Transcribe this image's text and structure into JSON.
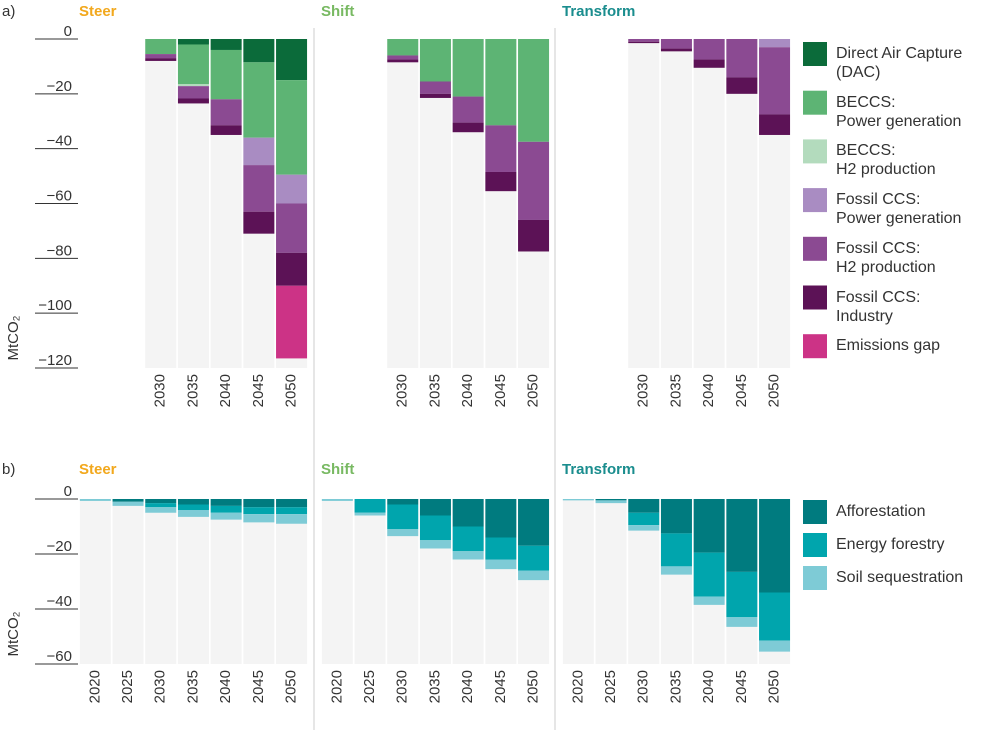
{
  "chart_data": [
    {
      "type": "bar",
      "stacked": true,
      "label": "a)",
      "ylabel": "MtCO₂",
      "groups": [
        "Steer",
        "Shift",
        "Transform"
      ],
      "group_colors": [
        "#f2a81d",
        "#78b962",
        "#1a8d8e"
      ],
      "categories": [
        "2030",
        "2035",
        "2040",
        "2045",
        "2050"
      ],
      "ylim": [
        -120,
        0
      ],
      "yticks": [
        0,
        {
          "value": -20,
          "label": "−20"
        },
        {
          "value": -40,
          "label": "−40"
        },
        {
          "value": -60,
          "label": "−60"
        },
        {
          "value": -80,
          "label": "−80"
        },
        {
          "value": -100,
          "label": "−100"
        },
        {
          "value": -120,
          "label": "−120"
        }
      ],
      "series": [
        {
          "name": "Direct Air Capture\n(DAC)",
          "color": "#0b6b3a",
          "values": [
            [
              0,
              -2,
              -4,
              -8.5,
              -15
            ],
            [
              0,
              0,
              0,
              0,
              0
            ],
            [
              0,
              0,
              0,
              0,
              0
            ]
          ]
        },
        {
          "name": "BECCS:\nPower generation",
          "color": "#5db474",
          "values": [
            [
              -5.5,
              -14.5,
              -18,
              -27.5,
              -34.5
            ],
            [
              -6,
              -15.5,
              -21,
              -31.5,
              -37.5
            ],
            [
              0,
              0,
              0,
              0,
              0
            ]
          ]
        },
        {
          "name": "BECCS:\nH2 production",
          "color": "#b3dbbd",
          "values": [
            [
              0,
              -0.7,
              0,
              0,
              0
            ],
            [
              0,
              0,
              0,
              0,
              0
            ],
            [
              0,
              0,
              0,
              0,
              0
            ]
          ]
        },
        {
          "name": "Fossil CCS:\nPower generation",
          "color": "#a98cc2",
          "values": [
            [
              0,
              0,
              0,
              -10,
              -10.5
            ],
            [
              0,
              0,
              0,
              0,
              0
            ],
            [
              0,
              0,
              0,
              0,
              -3
            ]
          ]
        },
        {
          "name": "Fossil CCS:\nH2 production",
          "color": "#8b4a92",
          "values": [
            [
              -1.5,
              -4.5,
              -9.5,
              -17,
              -18
            ],
            [
              -1.5,
              -4.5,
              -9.5,
              -17,
              -28.5
            ],
            [
              -1,
              -3.5,
              -7.5,
              -14,
              -24.5
            ]
          ]
        },
        {
          "name": "Fossil CCS:\nIndustry",
          "color": "#5c1256",
          "values": [
            [
              -1,
              -1.8,
              -3.5,
              -8,
              -12
            ],
            [
              -1,
              -1.5,
              -3.5,
              -7,
              -11.5
            ],
            [
              -0.5,
              -1,
              -3,
              -6,
              -7.5
            ]
          ]
        },
        {
          "name": "Emissions gap",
          "color": "#cc3386",
          "values": [
            [
              0,
              0,
              0,
              0,
              -26.5
            ],
            [
              0,
              0,
              0,
              0,
              0
            ],
            [
              0,
              0,
              0,
              0,
              0
            ]
          ]
        }
      ]
    },
    {
      "type": "bar",
      "stacked": true,
      "label": "b)",
      "ylabel": "MtCO₂",
      "groups": [
        "Steer",
        "Shift",
        "Transform"
      ],
      "group_colors": [
        "#f2a81d",
        "#78b962",
        "#1a8d8e"
      ],
      "categories": [
        "2020",
        "2025",
        "2030",
        "2035",
        "2040",
        "2045",
        "2050"
      ],
      "ylim": [
        -60,
        0
      ],
      "yticks": [
        0,
        {
          "value": -20,
          "label": "−20"
        },
        {
          "value": -40,
          "label": "−40"
        },
        {
          "value": -60,
          "label": "−60"
        }
      ],
      "series": [
        {
          "name": "Afforestation",
          "color": "#007b7f",
          "values": [
            [
              0,
              -1,
              -1.5,
              -2,
              -2.5,
              -3,
              -3
            ],
            [
              0,
              0,
              -2,
              -6,
              -10,
              -14,
              -17
            ],
            [
              0,
              -0.5,
              -5,
              -12.5,
              -19.5,
              -26.5,
              -34
            ]
          ]
        },
        {
          "name": "Energy forestry",
          "color": "#00a5ad",
          "values": [
            [
              0,
              0,
              -1.5,
              -2,
              -2.5,
              -2.5,
              -2.5
            ],
            [
              0,
              -5,
              -9,
              -9,
              -9,
              -8,
              -9
            ],
            [
              0,
              0,
              -4.5,
              -12,
              -16,
              -16.5,
              -17.5
            ]
          ]
        },
        {
          "name": "Soil sequestration",
          "color": "#7ecbd6",
          "values": [
            [
              -0.7,
              -1.5,
              -2,
              -2.5,
              -2.5,
              -3,
              -3.5
            ],
            [
              -0.7,
              -1,
              -2.5,
              -3,
              -3,
              -3.5,
              -3.5
            ],
            [
              -0.5,
              -1,
              -2,
              -3,
              -3,
              -3.5,
              -4
            ]
          ]
        }
      ]
    }
  ]
}
